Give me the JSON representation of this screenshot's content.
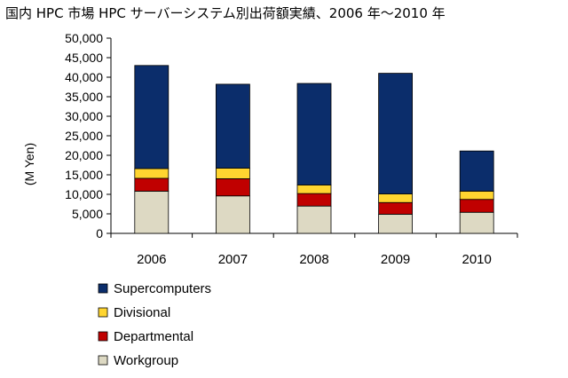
{
  "title": "国内 HPC 市場 HPC サーバーシステム別出荷額実績、2006 年～2010 年",
  "chart_data": {
    "type": "bar",
    "stacked": true,
    "title": "国内 HPC 市場 HPC サーバーシステム別出荷額実績、2006 年～2010 年",
    "xlabel": "",
    "ylabel": "(M Yen)",
    "ylim": [
      0,
      50000
    ],
    "yticks": [
      0,
      5000,
      10000,
      15000,
      20000,
      25000,
      30000,
      35000,
      40000,
      45000,
      50000
    ],
    "ytick_labels": [
      "0",
      "5,000",
      "10,000",
      "15,000",
      "20,000",
      "25,000",
      "30,000",
      "35,000",
      "40,000",
      "45,000",
      "50,000"
    ],
    "categories": [
      "2006",
      "2007",
      "2008",
      "2009",
      "2010"
    ],
    "grid": false,
    "legend_position": "bottom",
    "series": [
      {
        "name": "Workgroup",
        "color": "#ddd9c3",
        "values": [
          10800,
          9600,
          7000,
          4900,
          5400
        ]
      },
      {
        "name": "Departmental",
        "color": "#c00000",
        "values": [
          3300,
          4400,
          3200,
          3000,
          3300
        ]
      },
      {
        "name": "Divisional",
        "color": "#ffd530",
        "values": [
          2500,
          2700,
          2200,
          2200,
          2100
        ]
      },
      {
        "name": "Supercomputers",
        "color": "#0b2d6b",
        "values": [
          26400,
          21500,
          26000,
          30900,
          10300
        ]
      }
    ],
    "legend_order": [
      "Supercomputers",
      "Divisional",
      "Departmental",
      "Workgroup"
    ]
  }
}
